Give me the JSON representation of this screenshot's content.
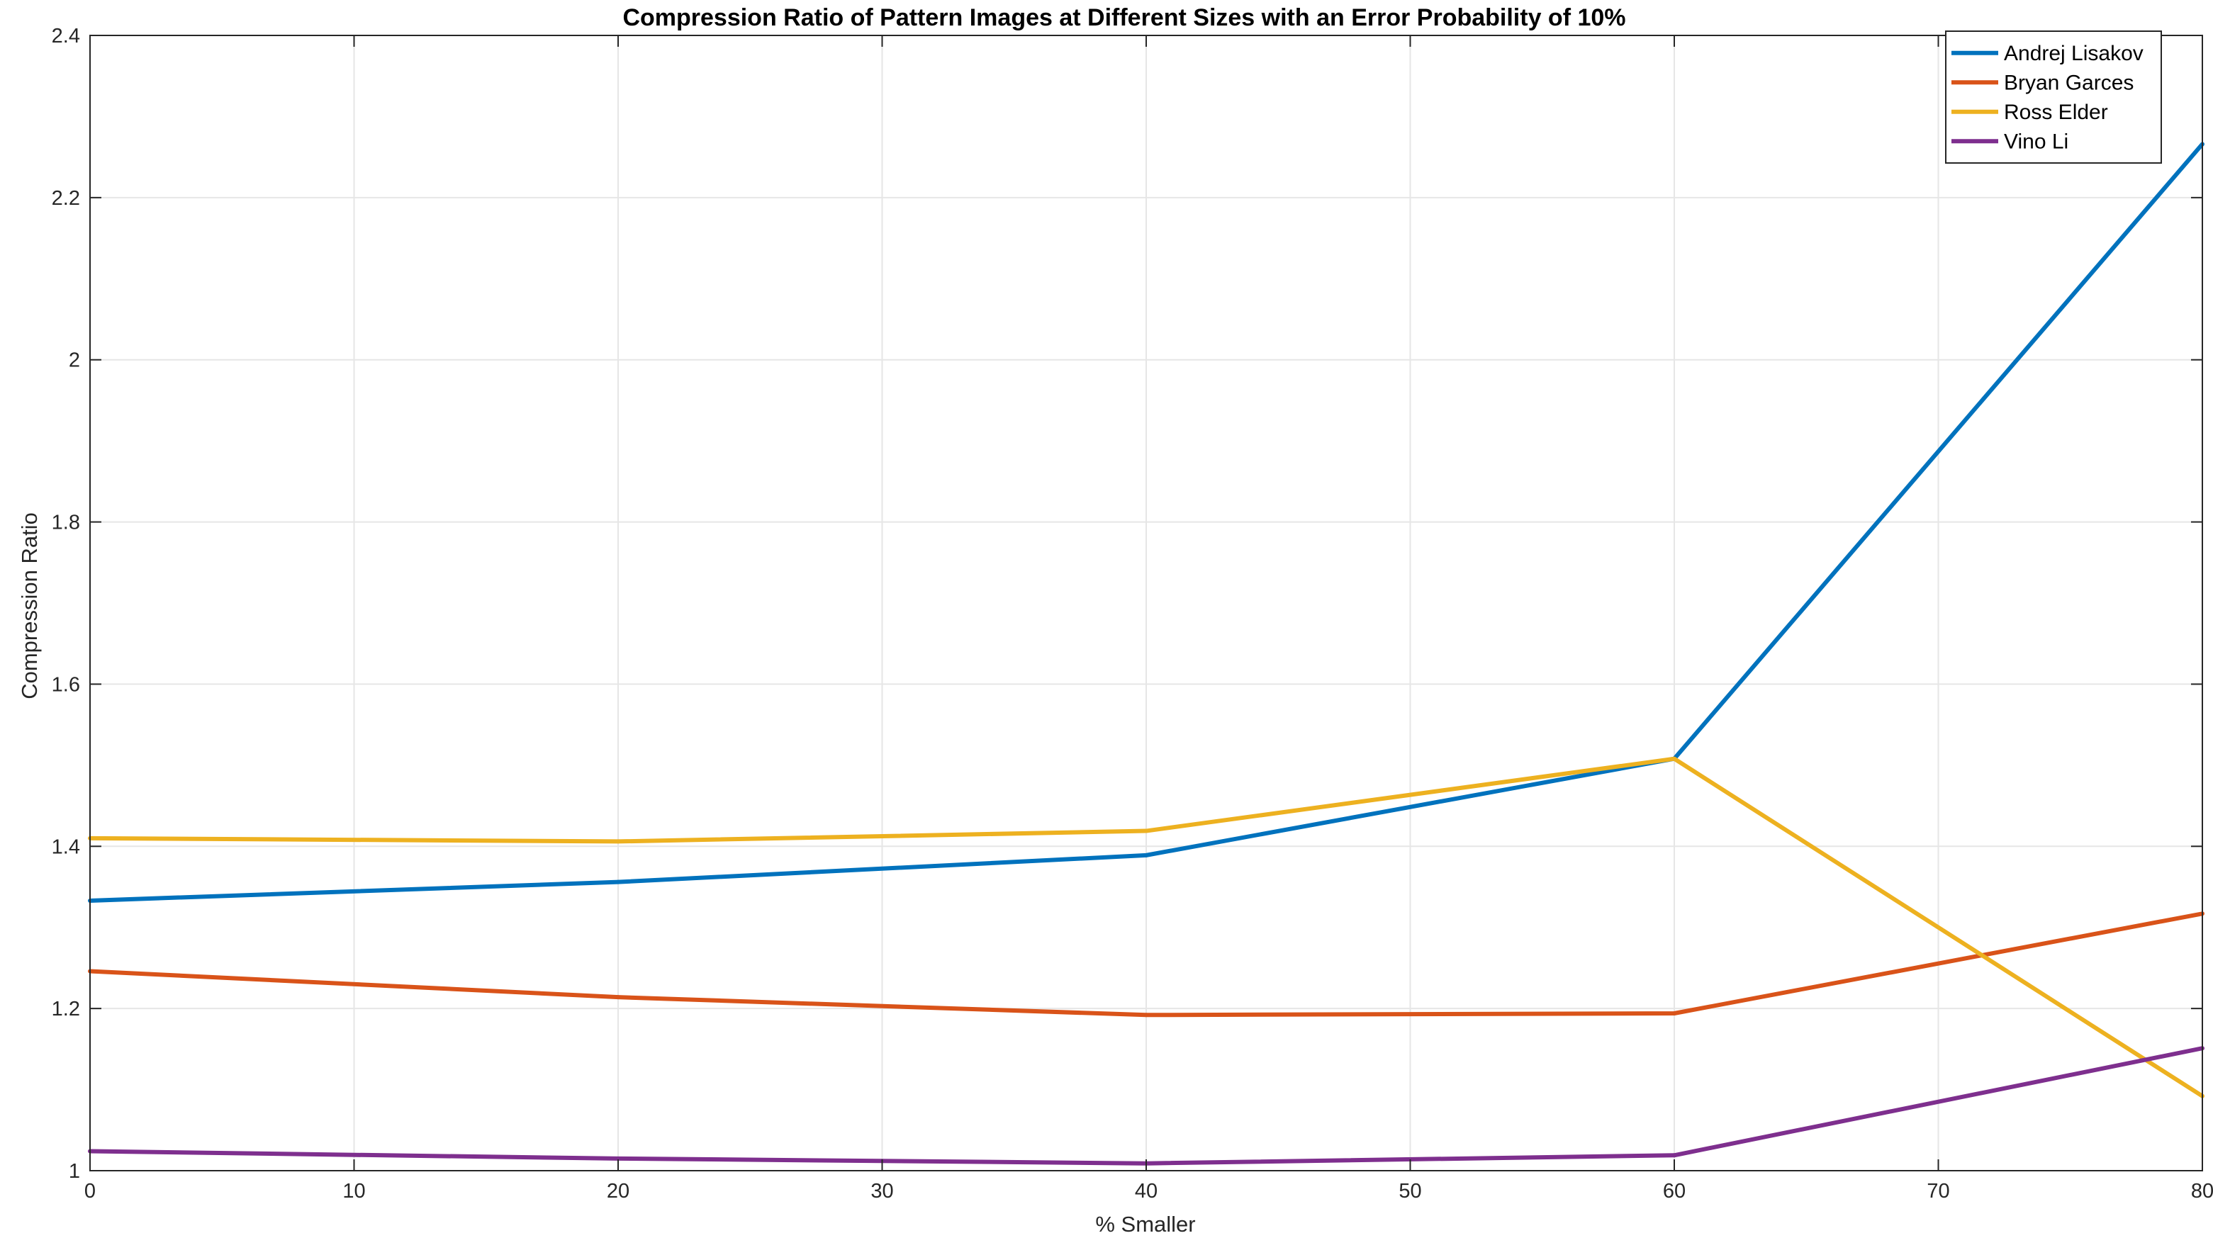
{
  "chart_data": {
    "type": "line",
    "title": "Compression Ratio of Pattern Images at Different Sizes with an Error Probability of 10%",
    "xlabel": "% Smaller",
    "ylabel": "Compression Ratio",
    "xlim": [
      0,
      80
    ],
    "ylim": [
      1,
      2.4
    ],
    "xticks": [
      0,
      10,
      20,
      30,
      40,
      50,
      60,
      70,
      80
    ],
    "yticks": [
      1,
      1.2,
      1.4,
      1.6,
      1.8,
      2,
      2.2,
      2.4
    ],
    "xtick_labels": [
      "0",
      "10",
      "20",
      "30",
      "40",
      "50",
      "60",
      "70",
      "80"
    ],
    "ytick_labels": [
      "1",
      "1.2",
      "1.4",
      "1.6",
      "1.8",
      "2",
      "2.2",
      "2.4"
    ],
    "grid": true,
    "legend_position": "top-right",
    "x": [
      0,
      20,
      40,
      60,
      80
    ],
    "series": [
      {
        "name": "Andrej Lisakov",
        "color": "#0072BD",
        "values": [
          1.333,
          1.356,
          1.389,
          1.508,
          2.266
        ]
      },
      {
        "name": "Bryan Garces",
        "color": "#D95319",
        "values": [
          1.246,
          1.214,
          1.192,
          1.194,
          1.317
        ]
      },
      {
        "name": "Ross Elder",
        "color": "#EDB120",
        "values": [
          1.41,
          1.406,
          1.419,
          1.508,
          1.092
        ]
      },
      {
        "name": "Vino Li",
        "color": "#7E2F8E",
        "values": [
          1.024,
          1.015,
          1.009,
          1.019,
          1.151
        ]
      }
    ]
  }
}
